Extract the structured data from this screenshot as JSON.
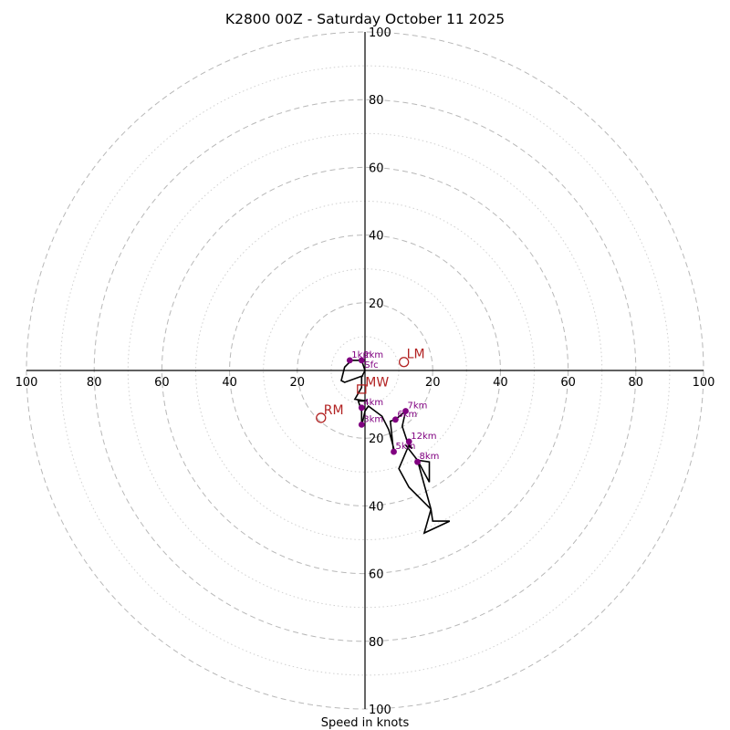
{
  "chart_data": {
    "type": "hodograph",
    "title": "K2800 00Z - Saturday October 11 2025",
    "xlabel": "Speed in knots",
    "range": [
      -100,
      100
    ],
    "major_rings": [
      20,
      40,
      60,
      80,
      100
    ],
    "minor_rings": [
      10,
      30,
      50,
      70,
      90
    ],
    "x_tick_labels": [
      "100",
      "80",
      "60",
      "40",
      "20",
      "20",
      "40",
      "60",
      "80",
      "100"
    ],
    "y_tick_labels": [
      "100",
      "80",
      "60",
      "40",
      "20",
      "20",
      "40",
      "60",
      "80",
      "100"
    ],
    "wind_trace_uv": [
      [
        -0.5,
        -1.5
      ],
      [
        -6,
        -3.5
      ],
      [
        -7,
        -3
      ],
      [
        -6,
        1
      ],
      [
        -4,
        3
      ],
      [
        -1,
        3
      ],
      [
        0,
        0
      ],
      [
        -1,
        -2
      ],
      [
        -1,
        -5
      ],
      [
        -3,
        -8.5
      ],
      [
        0.5,
        -9
      ],
      [
        -2,
        -9
      ],
      [
        -1,
        -12
      ],
      [
        -1,
        -16.5
      ],
      [
        0,
        -12
      ],
      [
        1,
        -10.5
      ],
      [
        5,
        -13.5
      ],
      [
        7,
        -17.5
      ],
      [
        8.5,
        -23
      ],
      [
        8.5,
        -24.5
      ],
      [
        7.5,
        -15
      ],
      [
        9,
        -14.5
      ],
      [
        12,
        -12
      ],
      [
        11,
        -16.5
      ],
      [
        13,
        -22.5
      ],
      [
        14,
        -23
      ],
      [
        13,
        -22
      ],
      [
        10,
        -29
      ],
      [
        13,
        -34.5
      ],
      [
        19.5,
        -41
      ],
      [
        17.5,
        -48
      ],
      [
        25,
        -44.5
      ],
      [
        20,
        -44.5
      ],
      [
        19.5,
        -41
      ],
      [
        15.5,
        -26.5
      ],
      [
        19,
        -27
      ],
      [
        19,
        -33
      ],
      [
        15.5,
        -26.5
      ],
      [
        12,
        -22
      ]
    ],
    "height_markers": [
      {
        "label": "Sfc",
        "u": -1,
        "v": 0
      },
      {
        "label": "1km",
        "u": -4.5,
        "v": 3
      },
      {
        "label": "2km",
        "u": -1,
        "v": 3
      },
      {
        "label": "3km",
        "u": -1,
        "v": -16
      },
      {
        "label": "4km",
        "u": -1,
        "v": -11
      },
      {
        "label": "5km",
        "u": 8.5,
        "v": -24
      },
      {
        "label": "6km",
        "u": 9,
        "v": -14.5
      },
      {
        "label": "7km",
        "u": 12,
        "v": -12
      },
      {
        "label": "8km",
        "u": 15.5,
        "v": -27
      },
      {
        "label": "12km",
        "u": 13,
        "v": -21
      }
    ],
    "storm_motion": {
      "RM": {
        "label": "RM",
        "u": -13,
        "v": -14
      },
      "LM": {
        "label": "LM",
        "u": 11.5,
        "v": 2.5
      },
      "MW": {
        "label": "MW",
        "u": -1,
        "v": -5.5
      }
    }
  }
}
